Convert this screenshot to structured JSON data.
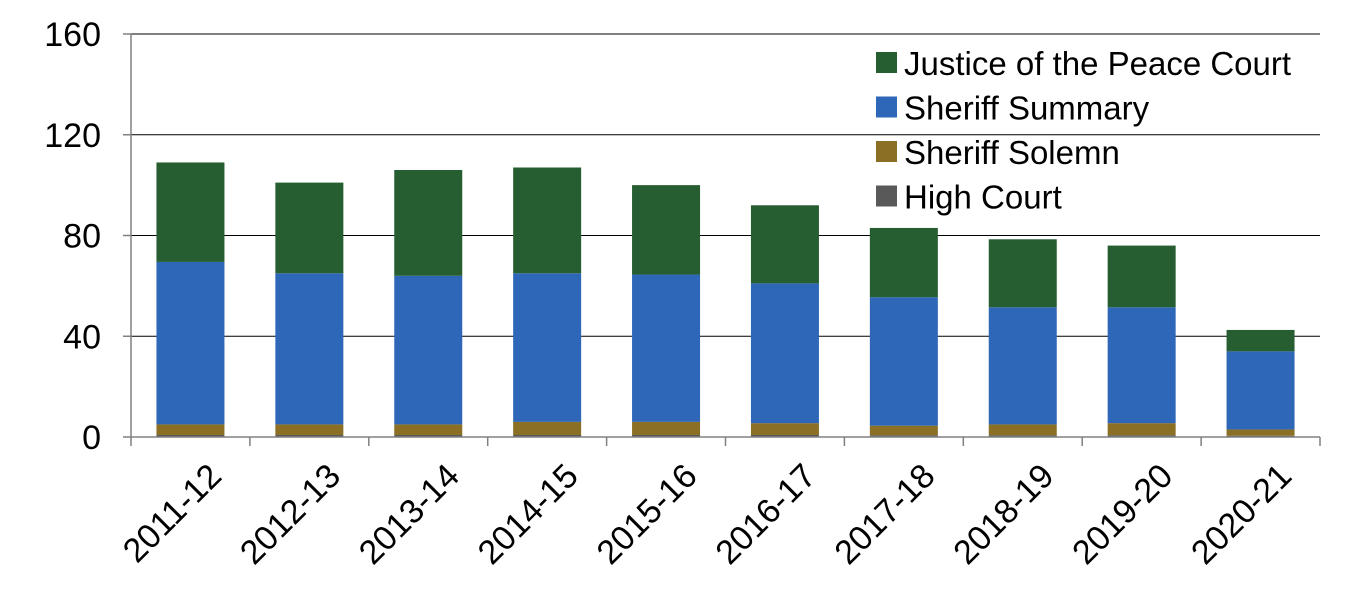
{
  "chart_data": {
    "type": "bar",
    "stacked": true,
    "categories": [
      "2011-12",
      "2012-13",
      "2013-14",
      "2014-15",
      "2015-16",
      "2016-17",
      "2017-18",
      "2018-19",
      "2019-20",
      "2020-21"
    ],
    "series": [
      {
        "name": "High Court",
        "color": "#595959",
        "values": [
          0.8,
          0.8,
          0.8,
          0.8,
          0.8,
          0.8,
          0.7,
          0.7,
          0.7,
          0.5
        ]
      },
      {
        "name": "Sheriff Solemn",
        "color": "#8B6F25",
        "values": [
          4.2,
          4.2,
          4.2,
          5.2,
          5.2,
          4.7,
          3.8,
          4.3,
          4.8,
          2.5
        ]
      },
      {
        "name": "Sheriff Summary",
        "color": "#2E67B8",
        "values": [
          64.5,
          60.0,
          59.0,
          59.0,
          58.5,
          55.5,
          51.0,
          46.5,
          46.0,
          31.0
        ]
      },
      {
        "name": "Justice of the Peace Court",
        "color": "#265E31",
        "values": [
          39.5,
          36.0,
          42.0,
          42.0,
          35.5,
          31.0,
          27.5,
          27.0,
          24.5,
          8.5
        ]
      }
    ],
    "legend_order": [
      "Justice of the Peace Court",
      "Sheriff Summary",
      "Sheriff Solemn",
      "High Court"
    ],
    "yticks": [
      "0",
      "40",
      "80",
      "120",
      "160"
    ],
    "ylim": [
      0,
      160
    ],
    "grid": true,
    "legend_position": "top-right"
  }
}
